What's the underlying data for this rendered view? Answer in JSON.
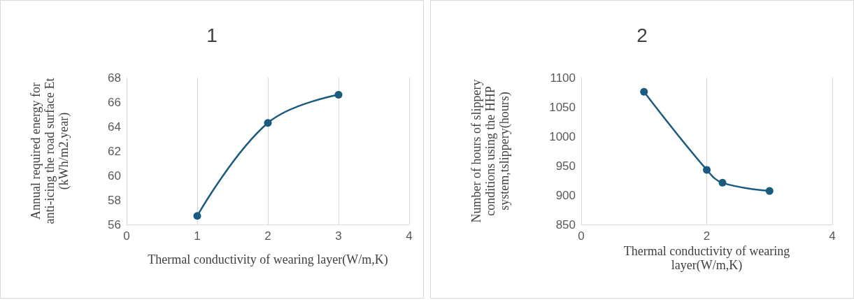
{
  "chart_data": [
    {
      "type": "line",
      "title": "1",
      "xlabel": "Thermal conductivity of wearing layer(W/m,K)",
      "ylabel": "Annual required energy for anti-icing the road surface Et (kWh/m2.year)",
      "x": [
        1,
        2,
        3
      ],
      "series": [
        {
          "color": "#1b5c7e",
          "values": [
            56.7,
            64.3,
            66.6
          ]
        }
      ],
      "xlim": [
        0,
        4
      ],
      "xticks": [
        0,
        1,
        2,
        3,
        4
      ],
      "ylim": [
        56,
        68
      ],
      "yticks": [
        56,
        58,
        60,
        62,
        64,
        66,
        68
      ],
      "grid": "x",
      "marker": "circle",
      "line_style": "solid"
    },
    {
      "type": "line",
      "title": "2",
      "xlabel": "Thermal conductivity of wearing layer(W/m,K)",
      "ylabel": "Number of hours of slippery conditions using the HHP system,tslippery(hours)",
      "x": [
        1,
        2,
        2.25,
        3
      ],
      "series": [
        {
          "color": "#1b5c7e",
          "values": [
            1076,
            943,
            921,
            907
          ]
        }
      ],
      "xlim": [
        0,
        4
      ],
      "xticks": [
        0,
        2,
        4
      ],
      "ylim": [
        850,
        1100
      ],
      "yticks": [
        850,
        900,
        950,
        1000,
        1050,
        1100
      ],
      "grid": "x",
      "marker": "circle",
      "line_style": "solid"
    }
  ]
}
